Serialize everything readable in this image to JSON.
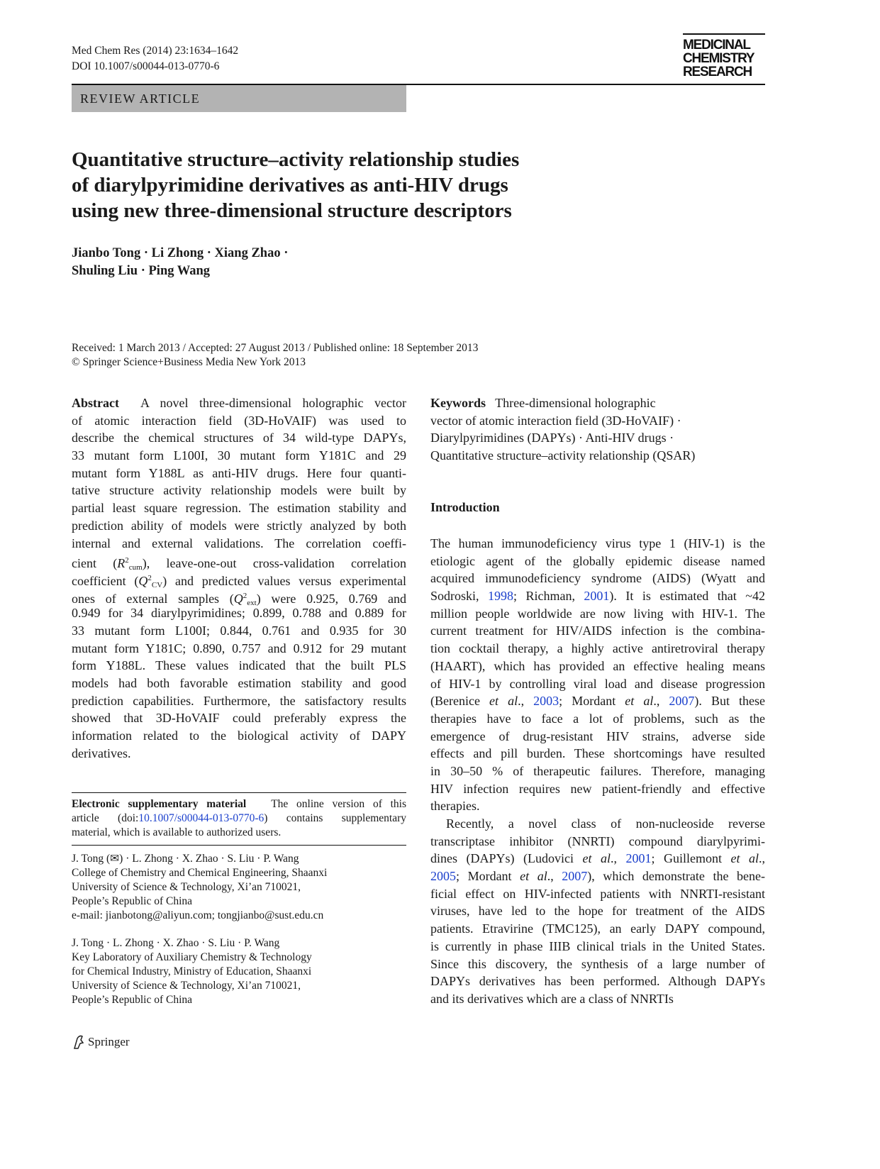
{
  "header": {
    "journal": "Med Chem Res (2014) 23:1634–1642",
    "doi": "DOI 10.1007/s00044-013-0770-6",
    "logo": [
      "MEDICINAL",
      "CHEMISTRY",
      "RESEARCH"
    ],
    "article_type": "REVIEW ARTICLE"
  },
  "title": [
    "Quantitative structure–activity relationship studies",
    "of diarylpyrimidine derivatives as anti-HIV drugs",
    "using new three-dimensional structure descriptors"
  ],
  "authors": [
    "Jianbo Tong · Li Zhong · Xiang Zhao ·",
    "Shuling Liu · Ping Wang"
  ],
  "dates": [
    "Received: 1 March 2013 / Accepted: 27 August 2013 / Published online: 18 September 2013",
    "© Springer Science+Business Media New York 2013"
  ],
  "abstract": [
    [
      [
        "b",
        "Abstract"
      ],
      "  A novel three-dimensional holographic vector"
    ],
    [
      "of atomic interaction field (3D-HoVAIF) was used to"
    ],
    [
      "describe the chemical structures of 34 wild-type DAPYs,"
    ],
    [
      "33 mutant form L100I, 30 mutant form Y181C and 29"
    ],
    [
      "mutant form Y188L as anti-HIV drugs. Here four quanti-"
    ],
    [
      "tative structure activity relationship models were built by"
    ],
    [
      "partial least square regression. The estimation stability and"
    ],
    [
      "prediction ability of models were strictly analyzed by both"
    ],
    [
      "internal and external validations. The correlation coeffi-"
    ],
    [
      "cient (",
      [
        "i",
        "R"
      ],
      [
        "sup",
        "2"
      ],
      [
        "sub",
        "cum"
      ],
      "), leave-one-out cross-validation correlation"
    ],
    [
      "coefficient (",
      [
        "i",
        "Q"
      ],
      [
        "sup",
        "2"
      ],
      [
        "sub",
        "CV"
      ],
      ") and predicted values versus experimental"
    ],
    [
      "ones of external samples (",
      [
        "i",
        "Q"
      ],
      [
        "sup",
        "2"
      ],
      [
        "sub",
        "ext"
      ],
      ") were 0.925, 0.769 and"
    ],
    [
      "0.949 for 34 diarylpyrimidines; 0.899, 0.788 and 0.889 for"
    ],
    [
      "33 mutant form L100I; 0.844, 0.761 and 0.935 for 30"
    ],
    [
      "mutant form Y181C; 0.890, 0.757 and 0.912 for 29 mutant"
    ],
    [
      "form Y188L. These values indicated that the built PLS"
    ],
    [
      "models had both favorable estimation stability and good"
    ],
    [
      "prediction capabilities. Furthermore, the satisfactory results"
    ],
    [
      "showed that 3D-HoVAIF could preferably express the"
    ],
    [
      "information related to the biological activity of DAPY"
    ],
    [
      "derivatives."
    ]
  ],
  "esm": [
    [
      [
        "b",
        "Electronic supplementary material"
      ],
      "   The online version of this"
    ],
    [
      "article (doi:",
      [
        "link",
        "10.1007/s00044-013-0770-6"
      ],
      ") contains supplementary"
    ],
    [
      "material, which is available to authorized users."
    ]
  ],
  "affiliation1": [
    "J. Tong (✉) · L. Zhong · X. Zhao · S. Liu · P. Wang",
    "College of Chemistry and Chemical Engineering, Shaanxi",
    "University of Science & Technology, Xi’an 710021,",
    "People’s Republic of China",
    "e-mail: jianbotong@aliyun.com; tongjianbo@sust.edu.cn"
  ],
  "affiliation2": [
    "J. Tong · L. Zhong · X. Zhao · S. Liu · P. Wang",
    "Key Laboratory of Auxiliary Chemistry & Technology",
    "for Chemical Industry, Ministry of Education, Shaanxi",
    "University of Science & Technology, Xi’an 710021,",
    "People’s Republic of China"
  ],
  "keywords": [
    [
      [
        "b",
        "Keywords"
      ],
      "   Three-dimensional holographic"
    ],
    [
      "vector of atomic interaction field (3D-HoVAIF) ·"
    ],
    [
      "Diarylpyrimidines (DAPYs) · Anti-HIV drugs ·"
    ],
    [
      "Quantitative structure–activity relationship (QSAR)"
    ]
  ],
  "intro_heading": "Introduction",
  "intro": [
    [
      "The human immunodeficiency virus type 1 (HIV-1) is the"
    ],
    [
      "etiologic agent of the globally epidemic disease named"
    ],
    [
      "acquired immunodeficiency syndrome (AIDS) (Wyatt and"
    ],
    [
      "Sodroski, ",
      [
        "link",
        "1998"
      ],
      "; Richman, ",
      [
        "link",
        "2001"
      ],
      "). It is estimated that  ~42"
    ],
    [
      "million people worldwide are now living with HIV-1. The"
    ],
    [
      "current treatment for HIV/AIDS infection is the combina-"
    ],
    [
      "tion cocktail therapy, a highly active antiretroviral therapy"
    ],
    [
      "(HAART), which has provided an effective healing means"
    ],
    [
      "of HIV-1 by controlling viral load and disease progression"
    ],
    [
      "(Berenice ",
      [
        "i",
        "et al"
      ],
      "., ",
      [
        "link",
        "2003"
      ],
      "; Mordant ",
      [
        "i",
        "et al"
      ],
      "., ",
      [
        "link",
        "2007"
      ],
      "). But these"
    ],
    [
      "therapies have to face a lot of problems, such as the"
    ],
    [
      "emergence of drug-resistant HIV strains, adverse side"
    ],
    [
      "effects and pill burden. These shortcomings have resulted"
    ],
    [
      "in 30–50 % of therapeutic failures. Therefore, managing"
    ],
    [
      "HIV infection requires new patient-friendly and effective"
    ],
    [
      "therapies."
    ],
    [
      "Recently, a novel class of non-nucleoside reverse"
    ],
    [
      "transcriptase inhibitor (NNRTI) compound diarylpyrimi-"
    ],
    [
      "dines (DAPYs) (Ludovici ",
      [
        "i",
        "et al"
      ],
      "., ",
      [
        "link",
        "2001"
      ],
      "; Guillemont ",
      [
        "i",
        "et al"
      ],
      ".,"
    ],
    [
      [
        "link",
        "2005"
      ],
      "; Mordant ",
      [
        "i",
        "et al"
      ],
      "., ",
      [
        "link",
        "2007"
      ],
      "), which demonstrate the bene-"
    ],
    [
      "ficial effect on HIV-infected patients with NNRTI-resistant"
    ],
    [
      "viruses, have led to the hope for treatment of the AIDS"
    ],
    [
      "patients. Etravirine (TMC125), an early DAPY compound,"
    ],
    [
      "is currently in phase IIIB clinical trials in the United States."
    ],
    [
      "Since this discovery, the synthesis of a large number of"
    ],
    [
      "DAPYs derivatives has been performed. Although DAPYs"
    ],
    [
      "and its derivatives which are a class of NNRTIs"
    ]
  ],
  "footer": {
    "publisher": "Springer",
    "icon": "springer-horse-icon"
  },
  "colors": {
    "link": "#1a3fcc",
    "band": "#b3b3b3"
  }
}
